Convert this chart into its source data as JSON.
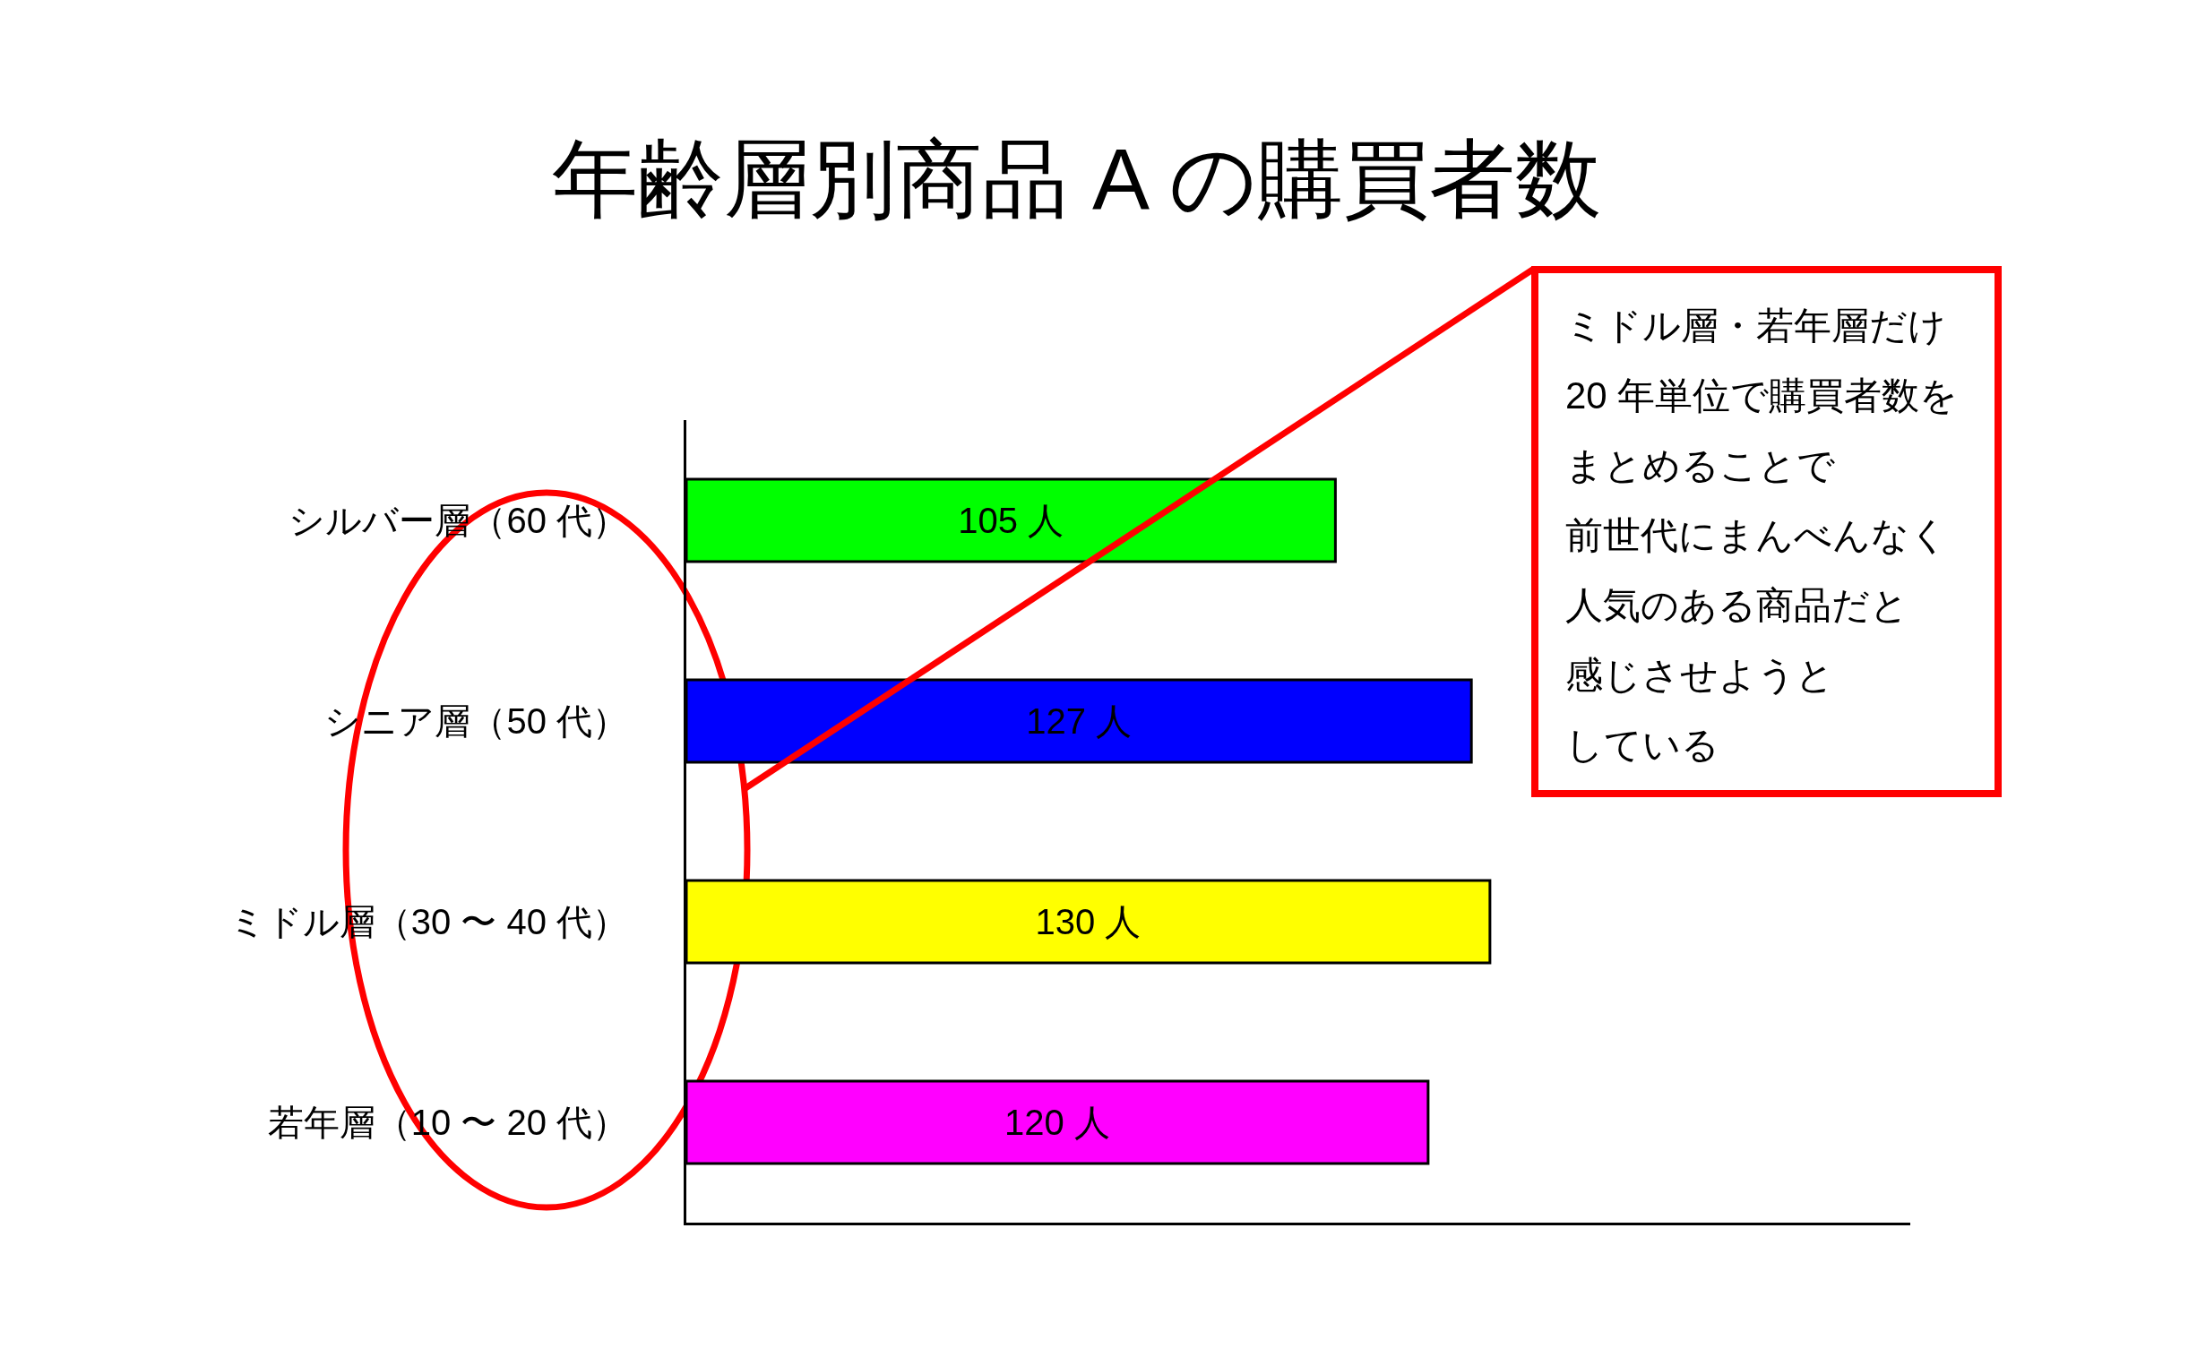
{
  "chart_data": {
    "type": "bar",
    "orientation": "horizontal",
    "title": "年齢層別商品 A の購買者数",
    "categories": [
      "シルバー層（60 代）",
      "シニア層（50 代）",
      "ミドル層（30 〜 40 代）",
      "若年層（10 〜 20 代）"
    ],
    "values": [
      105,
      127,
      130,
      120
    ],
    "colors": [
      "#00ff00",
      "#0000ff",
      "#ffff00",
      "#ff00ff"
    ],
    "value_labels": [
      "105 人",
      "127 人",
      "130 人",
      "120 人"
    ],
    "xlim": [
      0,
      198
    ],
    "tick_labels": "y",
    "annotations": [
      "ミドル層・若年層だけ",
      "20 年単位で購買者数を",
      "まとめることで",
      "前世代にまんべんなく",
      "人気のある商品だと",
      "感じさせようと",
      "している"
    ]
  }
}
